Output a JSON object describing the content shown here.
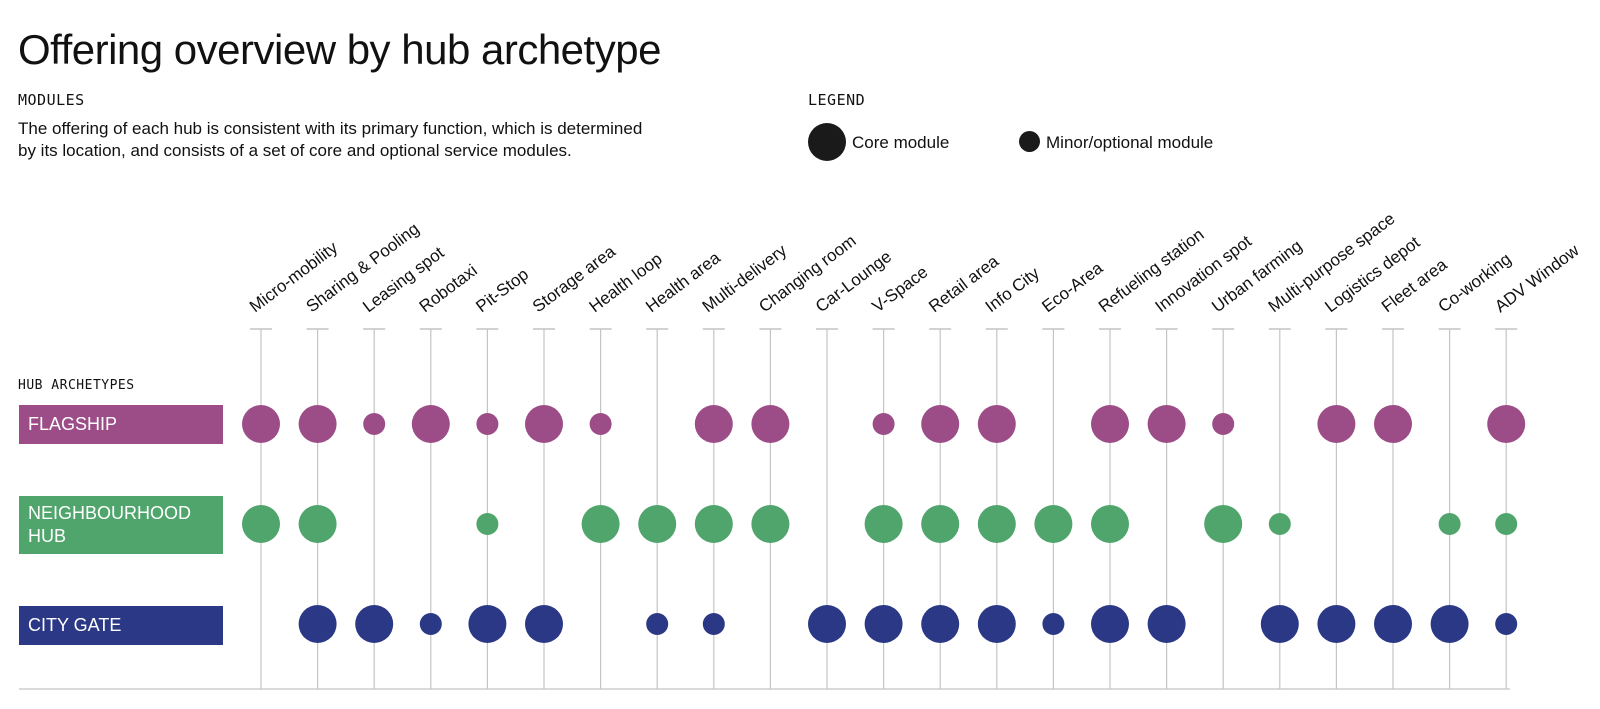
{
  "title": "Offering overview by hub archetype",
  "modules": {
    "heading": "MODULES",
    "text_line1": "The offering of each hub is consistent with its primary function, which is determined",
    "text_line2": "by its location, and consists of a set of core and optional service modules."
  },
  "legend": {
    "heading": "LEGEND",
    "core_label": "Core module",
    "minor_label": "Minor/optional module"
  },
  "hub_heading": "HUB ARCHETYPES",
  "chart_data": {
    "type": "dot-matrix",
    "columns": [
      "Micro-mobility",
      "Sharing & Pooling",
      "Leasing spot",
      "Robotaxi",
      "Pit-Stop",
      "Storage area",
      "Health loop",
      "Health area",
      "Multi-delivery",
      "Changing room",
      "Car-Lounge",
      "V-Space",
      "Retail area",
      "Info City",
      "Eco-Area",
      "Refueling station",
      "Innovation spot",
      "Urban farming",
      "Multi-purpose space",
      "Logistics depot",
      "Fleet area",
      "Co-working",
      "ADV Window"
    ],
    "rows": [
      {
        "label_line1": "FLAGSHIP",
        "label_line2": "",
        "color": "#9c4d87",
        "values": [
          "core",
          "core",
          "minor",
          "core",
          "minor",
          "core",
          "minor",
          "",
          "core",
          "core",
          "",
          "minor",
          "core",
          "core",
          "",
          "core",
          "core",
          "minor",
          "",
          "core",
          "core",
          "",
          "core"
        ]
      },
      {
        "label_line1": "NEIGHBOURHOOD",
        "label_line2": "HUB",
        "color": "#4fa56c",
        "values": [
          "core",
          "core",
          "",
          "",
          "minor",
          "",
          "core",
          "core",
          "core",
          "core",
          "",
          "core",
          "core",
          "core",
          "core",
          "core",
          "",
          "core",
          "minor",
          "",
          "",
          "minor",
          "minor"
        ]
      },
      {
        "label_line1": "CITY GATE",
        "label_line2": "",
        "color": "#2b3885",
        "values": [
          "",
          "core",
          "core",
          "minor",
          "core",
          "core",
          "",
          "minor",
          "minor",
          "",
          "core",
          "core",
          "core",
          "core",
          "minor",
          "core",
          "core",
          "",
          "core",
          "core",
          "core",
          "core",
          "minor"
        ]
      }
    ],
    "line_color": "#c4c4c4"
  }
}
